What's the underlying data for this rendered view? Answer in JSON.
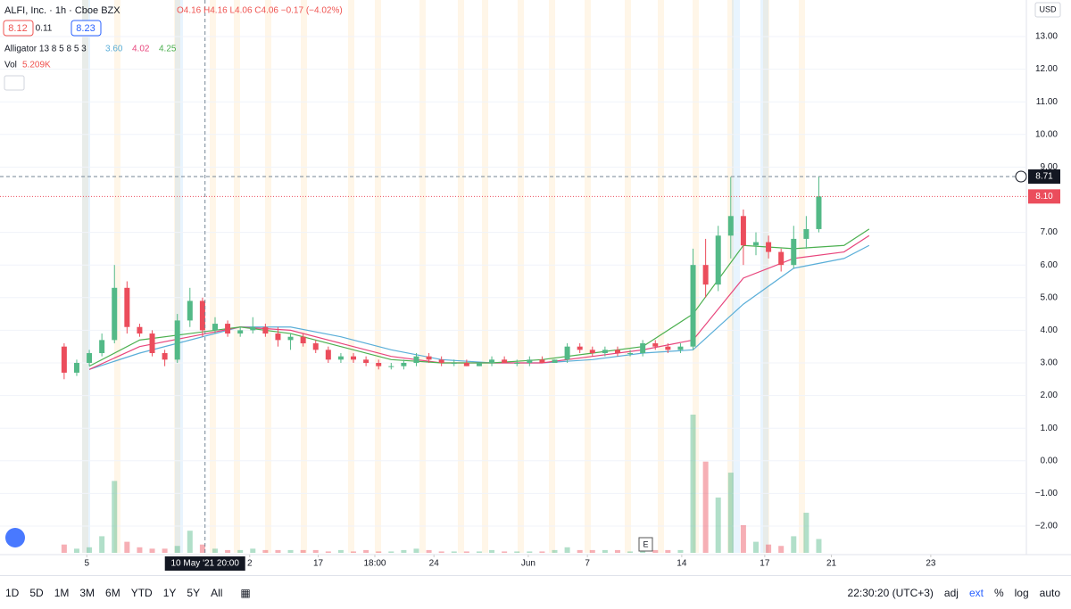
{
  "header": {
    "symbol": "ALFI, Inc. · 1h · Cboe BZX",
    "ohlc": "O4.16 H4.16 L4.06 C4.06 −0.17 (−4.02%)",
    "bid": "8.12",
    "spread": "0.11",
    "ask": "8.23",
    "indicator_label": "Alligator 13 8 5 8 5 3",
    "volume_label": "Vol",
    "volume_value": "5.209K",
    "currency": "USD",
    "event_marker": "E"
  },
  "toolbar": {
    "ranges": [
      "1D",
      "5D",
      "1M",
      "3M",
      "6M",
      "YTD",
      "1Y",
      "5Y",
      "All"
    ],
    "clock": "22:30:20 (UTC+3)",
    "options": [
      "adj",
      "ext",
      "%",
      "log",
      "auto"
    ]
  },
  "chart_data": {
    "type": "candlestick",
    "x": [
      0,
      1,
      2,
      3,
      4,
      5,
      6,
      7,
      8,
      9,
      10,
      11,
      12,
      13,
      14,
      15,
      16,
      17,
      18,
      19,
      20,
      21,
      22,
      23,
      24,
      25,
      26,
      27,
      28,
      29,
      30,
      31,
      32,
      33,
      34,
      35,
      36,
      37,
      38,
      39,
      40,
      41,
      42,
      43,
      44,
      45,
      46,
      47,
      48,
      49,
      50,
      51,
      52,
      53,
      54,
      55,
      56,
      57,
      58,
      59,
      60
    ],
    "open": [
      3.5,
      2.7,
      3.0,
      3.3,
      3.7,
      5.3,
      4.1,
      3.9,
      3.3,
      3.1,
      4.3,
      4.9,
      4.0,
      4.2,
      3.9,
      4.0,
      4.1,
      3.9,
      3.7,
      3.8,
      3.6,
      3.4,
      3.1,
      3.2,
      3.1,
      3.0,
      2.9,
      2.9,
      3.0,
      3.2,
      3.1,
      3.0,
      3.0,
      2.9,
      3.0,
      3.1,
      3.0,
      3.0,
      3.1,
      3.0,
      3.1,
      3.5,
      3.4,
      3.3,
      3.4,
      3.3,
      3.3,
      3.6,
      3.5,
      3.4,
      3.5,
      6.0,
      5.4,
      6.9,
      7.5,
      6.6,
      6.7,
      6.4,
      6.0,
      6.8,
      7.1
    ],
    "high": [
      3.6,
      3.1,
      3.4,
      3.9,
      6.0,
      5.5,
      4.2,
      4.0,
      3.4,
      4.5,
      5.3,
      5.0,
      4.4,
      4.3,
      4.1,
      4.4,
      4.2,
      4.1,
      3.9,
      3.9,
      3.7,
      3.5,
      3.3,
      3.3,
      3.2,
      3.1,
      3.0,
      3.1,
      3.3,
      3.3,
      3.2,
      3.1,
      3.1,
      3.0,
      3.2,
      3.2,
      3.1,
      3.2,
      3.2,
      3.1,
      3.6,
      3.6,
      3.5,
      3.5,
      3.5,
      3.4,
      3.7,
      3.7,
      3.6,
      3.6,
      6.5,
      6.8,
      7.2,
      8.7,
      7.7,
      7.0,
      6.9,
      6.5,
      7.2,
      7.5,
      8.71
    ],
    "low": [
      2.5,
      2.6,
      2.9,
      3.2,
      3.6,
      3.9,
      3.8,
      3.2,
      2.9,
      3.0,
      4.1,
      3.8,
      3.9,
      3.8,
      3.8,
      3.9,
      3.8,
      3.5,
      3.4,
      3.5,
      3.3,
      3.0,
      3.0,
      3.0,
      2.9,
      2.8,
      2.8,
      2.8,
      2.9,
      3.0,
      2.9,
      2.9,
      2.9,
      2.9,
      2.9,
      3.0,
      2.9,
      2.9,
      3.0,
      3.0,
      3.0,
      3.3,
      3.2,
      3.2,
      3.2,
      3.2,
      3.2,
      3.4,
      3.3,
      3.3,
      3.4,
      5.0,
      5.2,
      6.2,
      6.0,
      6.3,
      6.2,
      5.8,
      5.9,
      6.5,
      7.0
    ],
    "close": [
      2.7,
      3.0,
      3.3,
      3.7,
      5.3,
      4.1,
      3.9,
      3.3,
      3.1,
      4.3,
      4.9,
      4.0,
      4.2,
      3.9,
      4.0,
      4.1,
      3.9,
      3.7,
      3.8,
      3.6,
      3.4,
      3.1,
      3.2,
      3.1,
      3.0,
      2.9,
      2.9,
      3.0,
      3.2,
      3.1,
      3.0,
      3.0,
      2.9,
      3.0,
      3.1,
      3.0,
      3.0,
      3.1,
      3.0,
      3.1,
      3.5,
      3.4,
      3.3,
      3.4,
      3.3,
      3.3,
      3.6,
      3.5,
      3.4,
      3.5,
      6.0,
      5.4,
      6.9,
      7.5,
      6.6,
      6.7,
      6.4,
      6.0,
      6.8,
      7.1,
      8.1
    ],
    "volume": [
      6,
      3,
      4,
      12,
      52,
      8,
      4,
      3,
      3,
      5,
      16,
      6,
      3,
      2,
      2,
      3,
      2,
      2,
      2,
      2,
      2,
      1,
      2,
      1,
      2,
      1,
      1,
      2,
      3,
      2,
      1,
      1,
      1,
      1,
      2,
      1,
      1,
      1,
      1,
      2,
      4,
      2,
      2,
      2,
      2,
      1,
      3,
      2,
      2,
      2,
      100,
      66,
      40,
      58,
      20,
      8,
      6,
      5,
      12,
      29,
      10
    ],
    "vlim": [
      0,
      100
    ],
    "up_color": "#53b987",
    "down_color": "#eb4d5c",
    "xlim": [
      -5.1,
      76.5
    ],
    "ylim": [
      -2.82,
      14.12
    ],
    "xticks": [
      {
        "value": 1.8,
        "label": "5"
      },
      {
        "value": 14.75,
        "label": "2"
      },
      {
        "value": 20.2,
        "label": "17"
      },
      {
        "value": 24.7,
        "label": "18:00"
      },
      {
        "value": 29.4,
        "label": "24"
      },
      {
        "value": 36.9,
        "label": "Jun"
      },
      {
        "value": 41.6,
        "label": "7"
      },
      {
        "value": 49.1,
        "label": "14"
      },
      {
        "value": 55.7,
        "label": "17"
      },
      {
        "value": 61,
        "label": "21"
      },
      {
        "value": 68.9,
        "label": "23"
      }
    ],
    "yticks": [
      {
        "value": 13,
        "label": "13.00"
      },
      {
        "value": 12,
        "label": "12.00"
      },
      {
        "value": 11,
        "label": "11.00"
      },
      {
        "value": 10,
        "label": "10.00"
      },
      {
        "value": 9,
        "label": "9.00"
      },
      {
        "value": 7,
        "label": "7.00"
      },
      {
        "value": 6,
        "label": "6.00"
      },
      {
        "value": 5,
        "label": "5.00"
      },
      {
        "value": 4,
        "label": "4.00"
      },
      {
        "value": 3,
        "label": "3.00"
      },
      {
        "value": 2,
        "label": "2.00"
      },
      {
        "value": 1,
        "label": "1.00"
      },
      {
        "value": 0,
        "label": "0.00"
      },
      {
        "value": -1,
        "label": "−1.00"
      },
      {
        "value": -2,
        "label": "−2.00"
      }
    ],
    "crosshair": {
      "x": 11.2,
      "x_label": "10 May '21 20:00",
      "y": 8.71,
      "y_label": "8.71"
    },
    "last_price": {
      "value": 8.1,
      "label": "8.10"
    },
    "indicator": [
      {
        "color": "#5aaed8",
        "value_label": "3.60",
        "x": [
          2,
          6,
          10,
          14,
          18,
          22,
          26,
          30,
          34,
          38,
          42,
          46,
          50,
          54,
          58,
          62,
          64
        ],
        "values": [
          2.8,
          3.3,
          3.7,
          4.1,
          4.1,
          3.8,
          3.4,
          3.1,
          3.0,
          3.0,
          3.1,
          3.3,
          3.4,
          4.8,
          5.9,
          6.2,
          6.6
        ]
      },
      {
        "color": "#e8457c",
        "value_label": "4.02",
        "x": [
          2,
          6,
          10,
          14,
          18,
          22,
          26,
          30,
          34,
          38,
          42,
          46,
          50,
          54,
          58,
          62,
          64
        ],
        "values": [
          2.8,
          3.5,
          3.8,
          4.1,
          4.0,
          3.6,
          3.2,
          3.0,
          3.0,
          3.0,
          3.2,
          3.4,
          3.7,
          5.6,
          6.2,
          6.4,
          6.9
        ]
      },
      {
        "color": "#4cb050",
        "value_label": "4.25",
        "x": [
          2,
          6,
          10,
          14,
          18,
          22,
          26,
          30,
          34,
          38,
          42,
          46,
          50,
          54,
          58,
          62,
          64
        ],
        "values": [
          2.9,
          3.7,
          3.9,
          4.1,
          3.9,
          3.5,
          3.1,
          3.0,
          3.0,
          3.1,
          3.3,
          3.5,
          4.5,
          6.6,
          6.5,
          6.6,
          7.1
        ]
      }
    ]
  }
}
